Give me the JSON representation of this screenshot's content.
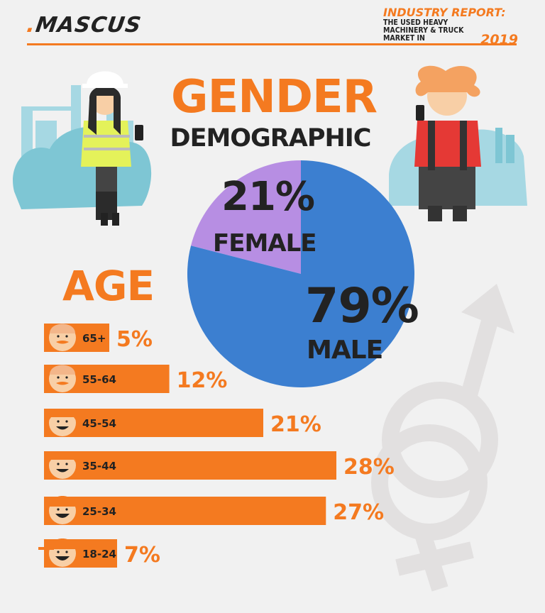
{
  "header": {
    "logo": "MASCUS",
    "report_title": "INDUSTRY REPORT:",
    "report_sub": "THE USED HEAVY MACHINERY & TRUCK MARKET IN",
    "report_year": "2019"
  },
  "gender_section": {
    "title": "GENDER",
    "subtitle": "DEMOGRAPHIC"
  },
  "age_section": {
    "title": "AGE"
  },
  "colors": {
    "accent": "#f47a20",
    "female": "#b78ee3",
    "male": "#3c7fd0",
    "text": "#222222",
    "symbol": "#e2e0e0"
  },
  "chart_data": [
    {
      "type": "pie",
      "title": "GENDER DEMOGRAPHIC",
      "categories": [
        "FEMALE",
        "MALE"
      ],
      "values": [
        21,
        79
      ],
      "labels": [
        "21%",
        "79%"
      ],
      "colors": [
        "#b78ee3",
        "#3c7fd0"
      ]
    },
    {
      "type": "bar",
      "title": "AGE",
      "categories": [
        "65+",
        "55-64",
        "45-54",
        "35-44",
        "25-34",
        "18-24"
      ],
      "values": [
        5,
        12,
        21,
        28,
        27,
        7
      ],
      "labels": [
        "5%",
        "12%",
        "21%",
        "28%",
        "27%",
        "7%"
      ],
      "xlim": [
        0,
        28
      ]
    }
  ]
}
